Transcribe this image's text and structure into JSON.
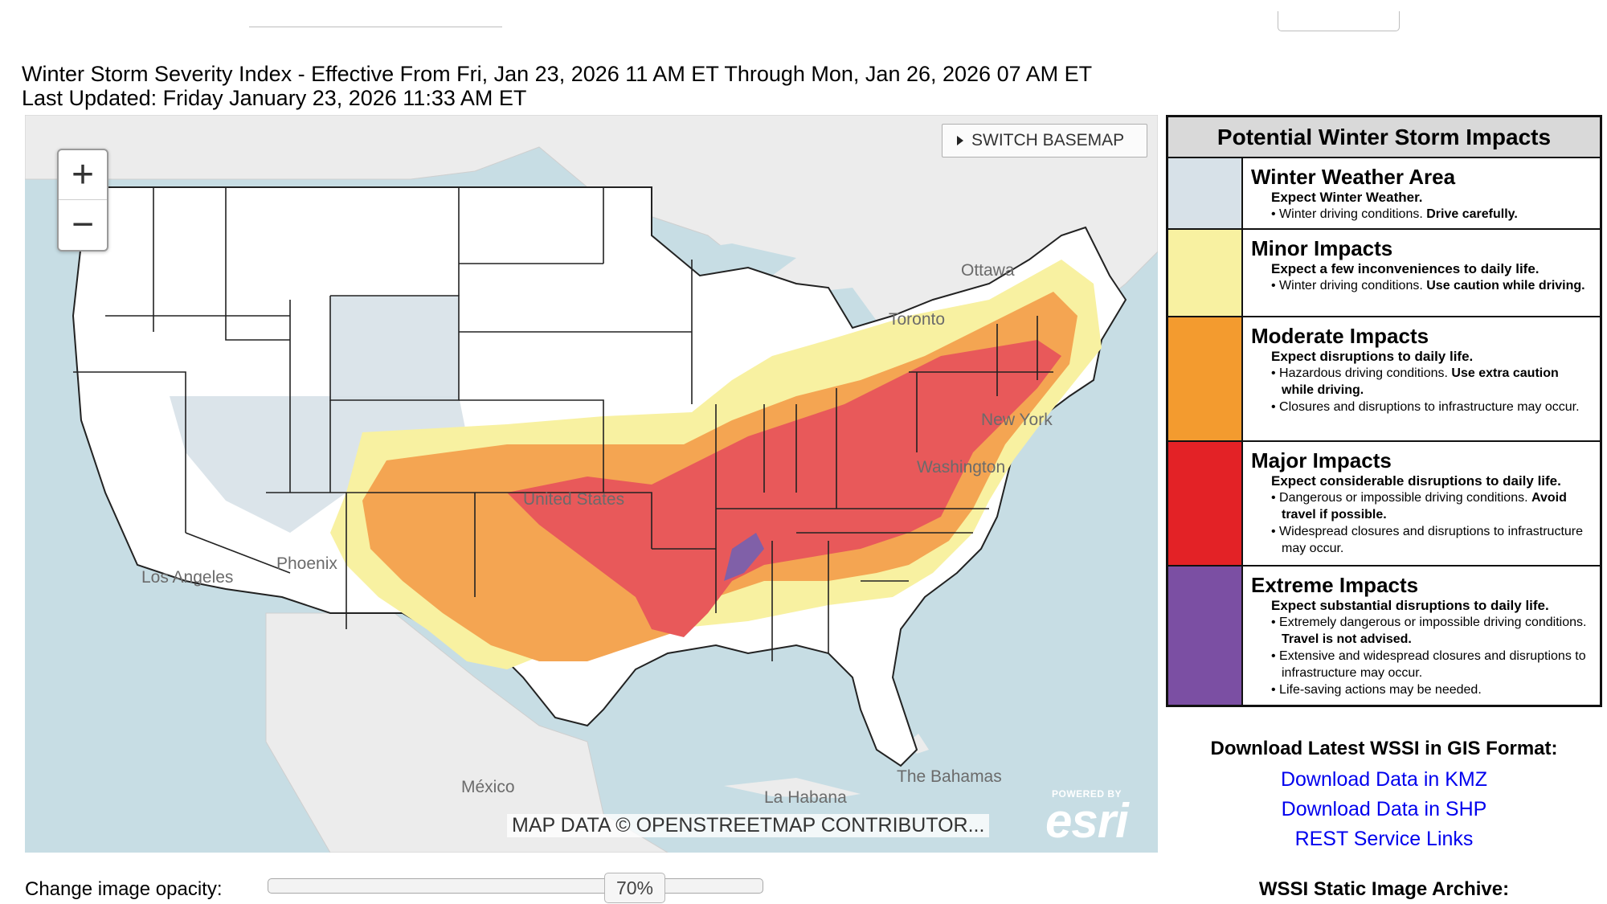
{
  "header": {
    "title": "Winter Storm Severity Index - Effective From Fri, Jan 23, 2026 11 AM ET Through Mon, Jan 26, 2026 07 AM ET",
    "last_updated": "Last Updated: Friday January 23, 2026 11:33 AM ET"
  },
  "map": {
    "zoom_in": "+",
    "zoom_out": "−",
    "switch_basemap": "SWITCH BASEMAP",
    "labels": {
      "ottawa": "Ottawa",
      "toronto": "Toronto",
      "new_york": "New York",
      "washington": "Washington",
      "united_states": "United States",
      "los_angeles": "Los Angeles",
      "phoenix": "Phoenix",
      "mexico": "México",
      "la_habana": "La Habana",
      "the_bahamas": "The Bahamas"
    },
    "attribution": "MAP DATA © OPENSTREETMAP CONTRIBUTOR...",
    "esri_powered": "POWERED BY",
    "esri_logo": "esri"
  },
  "legend": {
    "title": "Potential Winter Storm Impacts",
    "items": [
      {
        "color": "#d7e1e8",
        "title": "Winter Weather Area",
        "summary": "Expect Winter Weather.",
        "b1": "• Winter driving conditions.",
        "b1_bold": "Drive carefully."
      },
      {
        "color": "#f8f1a1",
        "title": "Minor Impacts",
        "summary": "Expect a few inconveniences to daily life.",
        "b1": "• Winter driving conditions.",
        "b1_bold": "Use caution while driving."
      },
      {
        "color": "#f39b2f",
        "title": "Moderate Impacts",
        "summary": "Expect disruptions to daily life.",
        "b1": "• Hazardous driving conditions.",
        "b1_bold": "Use extra caution while driving.",
        "b2": "• Closures and disruptions to infrastructure may occur."
      },
      {
        "color": "#e32226",
        "title": "Major Impacts",
        "summary": "Expect considerable disruptions to daily life.",
        "b1": "• Dangerous or impossible driving conditions.",
        "b1_bold": "Avoid travel if possible.",
        "b2": "• Widespread closures and disruptions to infrastructure may occur."
      },
      {
        "color": "#7b4fa3",
        "title": "Extreme Impacts",
        "summary": "Expect substantial disruptions to daily life.",
        "b1": "• Extremely dangerous or impossible driving conditions.",
        "b1_bold": "Travel is not advised.",
        "b2": "• Extensive and widespread closures and disruptions to infrastructure may occur.",
        "b3": "• Life-saving actions may be needed."
      }
    ]
  },
  "downloads": {
    "title": "Download Latest WSSI in GIS Format:",
    "kmz": "Download Data in KMZ",
    "shp": "Download Data in SHP",
    "rest": "REST Service Links"
  },
  "archive": {
    "title": "WSSI Static Image Archive:"
  },
  "opacity": {
    "label": "Change image opacity:",
    "value": "70%"
  }
}
